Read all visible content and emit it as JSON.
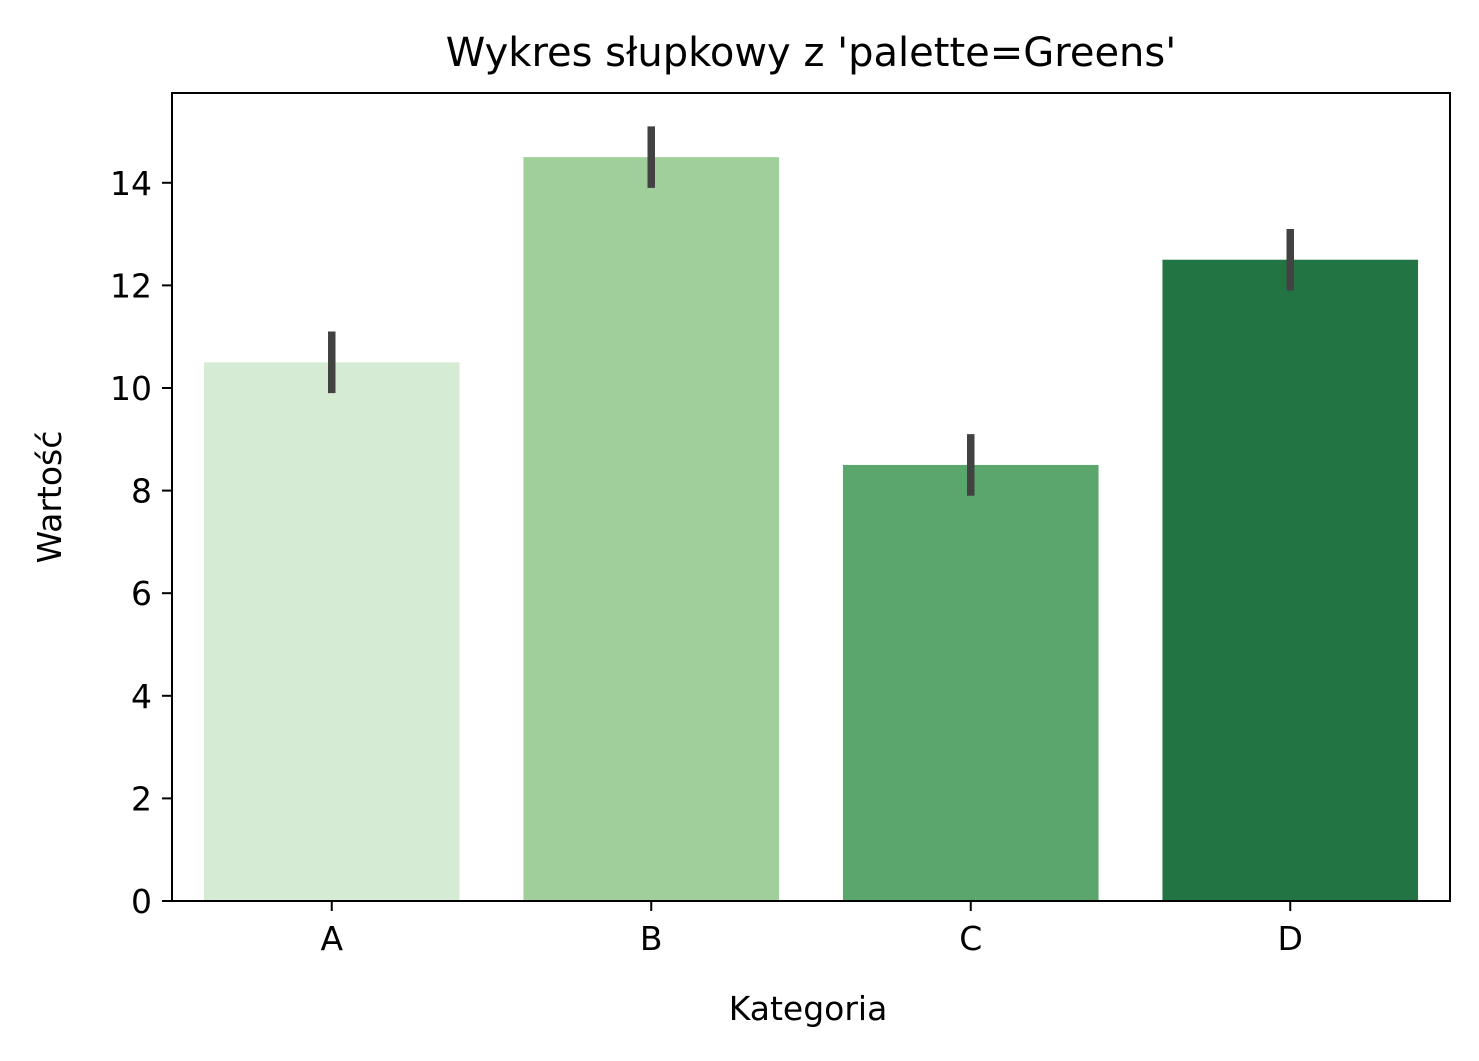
{
  "chart_data": {
    "type": "bar",
    "title": "Wykres słupkowy z 'palette=Greens'",
    "xlabel": "Kategoria",
    "ylabel": "Wartość",
    "categories": [
      "A",
      "B",
      "C",
      "D"
    ],
    "values": [
      10.5,
      14.5,
      8.5,
      12.5
    ],
    "error_low": [
      9.9,
      13.9,
      7.9,
      11.9
    ],
    "error_high": [
      11.1,
      15.1,
      9.1,
      13.1
    ],
    "colors": [
      "#d6ebd4",
      "#a0cf9c",
      "#5aa66c",
      "#227442"
    ],
    "error_color": "#424242",
    "ylim": [
      0,
      15.75
    ],
    "yticks": [
      0,
      2,
      4,
      6,
      8,
      10,
      12,
      14
    ],
    "grid": false,
    "legend": "none"
  }
}
